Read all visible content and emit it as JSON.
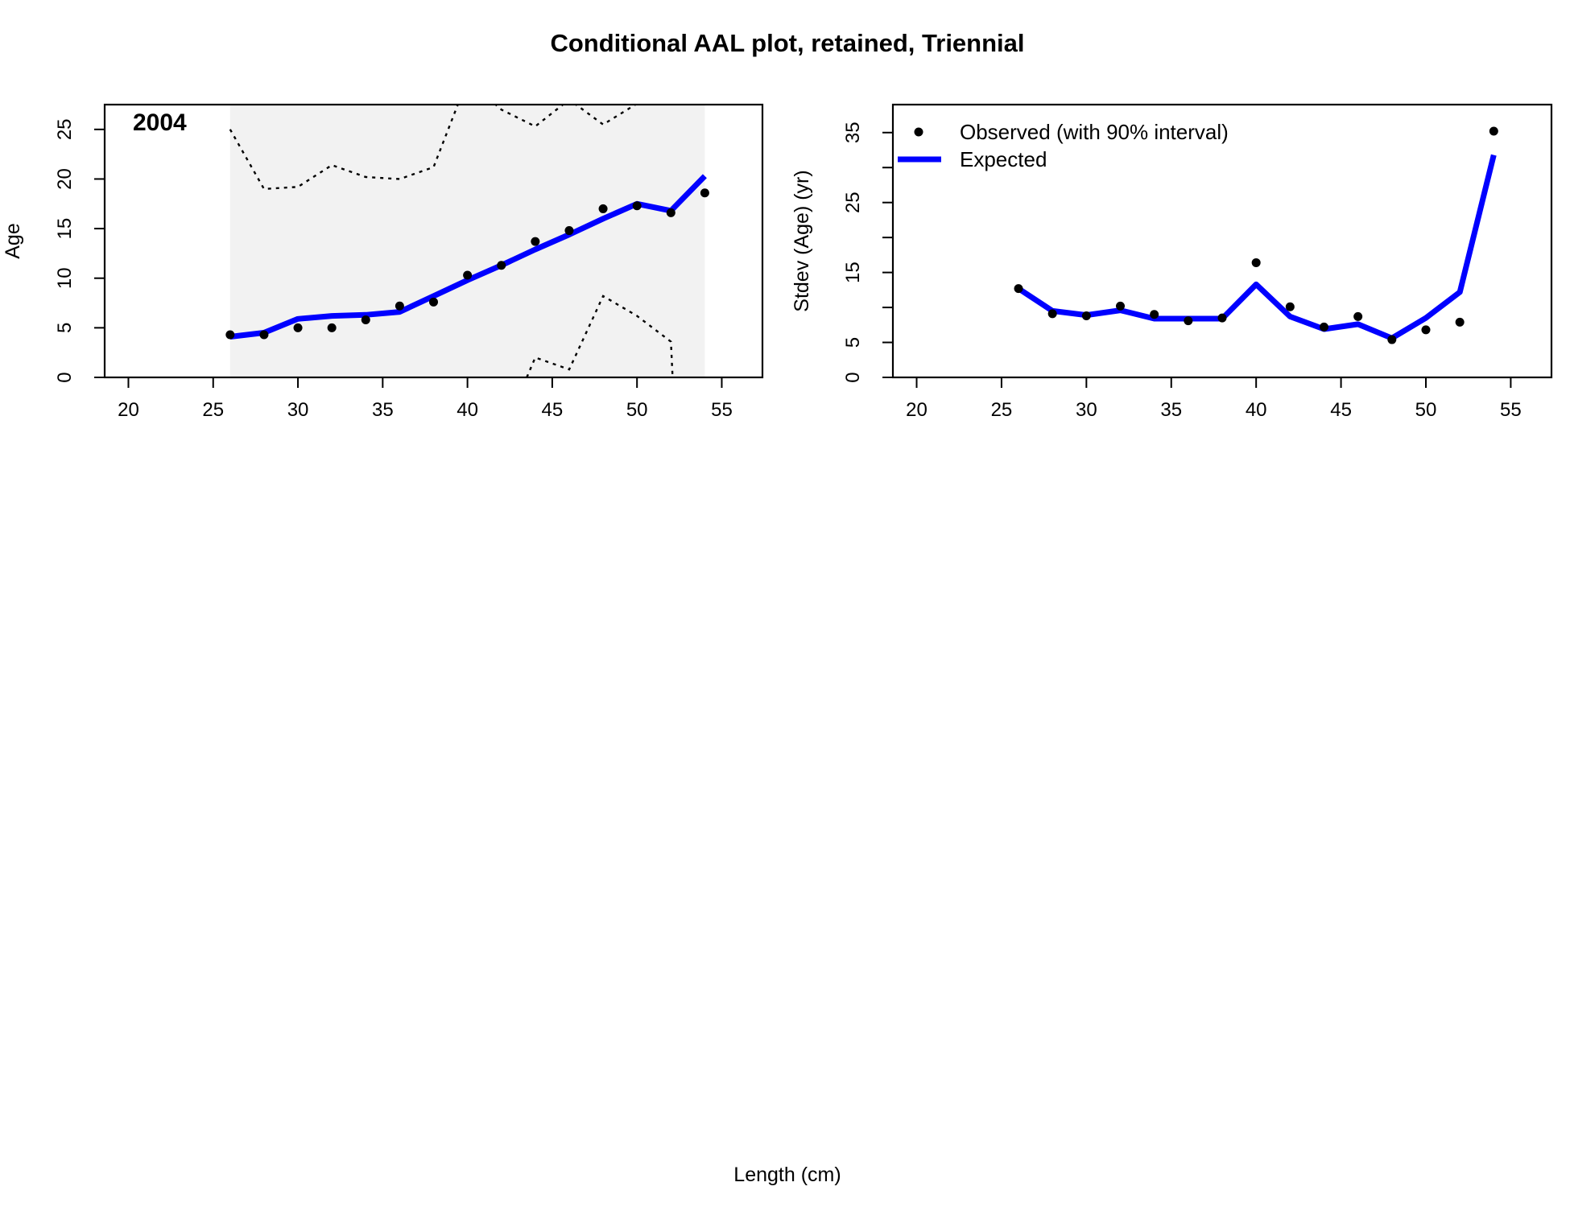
{
  "title": "Conditional AAL plot, retained, Triennial",
  "xlabel": "Length (cm)",
  "chart_data": [
    {
      "type": "line",
      "panel_label": "2004",
      "xlabel": "",
      "ylabel": "Age",
      "xlim": [
        18.6,
        57.4
      ],
      "ylim": [
        0,
        27.5
      ],
      "x_ticks": [
        20,
        25,
        30,
        35,
        40,
        45,
        50,
        55
      ],
      "y_ticks": [
        0,
        5,
        10,
        15,
        20,
        25
      ],
      "shaded_range_x": [
        26,
        54
      ],
      "shaded_color": "#f2f2f2",
      "series": [
        {
          "name": "",
          "kind": "points",
          "color": "#000000",
          "x": [
            26,
            28,
            30,
            32,
            34,
            36,
            38,
            40,
            42,
            44,
            46,
            48,
            50,
            52,
            54
          ],
          "values": [
            4.3,
            4.3,
            5.0,
            5.0,
            5.8,
            7.2,
            7.6,
            10.3,
            11.3,
            13.7,
            14.8,
            17.0,
            17.3,
            16.6,
            18.6
          ]
        },
        {
          "name": "",
          "kind": "line",
          "color": "#0000ff",
          "x": [
            26,
            28,
            30,
            32,
            34,
            36,
            38,
            40,
            42,
            44,
            46,
            48,
            50,
            52,
            54
          ],
          "values": [
            4.1,
            4.5,
            5.9,
            6.2,
            6.3,
            6.6,
            8.2,
            9.8,
            11.3,
            12.9,
            14.4,
            16.0,
            17.5,
            16.8,
            20.3
          ]
        },
        {
          "name": "",
          "kind": "dotted",
          "color": "#000000",
          "x": [
            26,
            28,
            30,
            32,
            34,
            36,
            38,
            40,
            42,
            44,
            46,
            48,
            50
          ],
          "values": [
            25.0,
            19.0,
            19.2,
            21.4,
            20.2,
            20.0,
            21.2,
            30.0,
            27.0,
            25.3,
            28.0,
            25.5,
            27.6
          ]
        },
        {
          "name": "",
          "kind": "dotted",
          "color": "#000000",
          "x": [
            43.5,
            44,
            46,
            48,
            50,
            52,
            52.1
          ],
          "values": [
            0,
            2.0,
            0.8,
            8.2,
            6.2,
            3.6,
            0
          ]
        }
      ]
    },
    {
      "type": "line",
      "xlabel": "",
      "ylabel": "Stdev (Age) (yr)",
      "xlim": [
        18.6,
        57.4
      ],
      "ylim": [
        0,
        39
      ],
      "x_ticks": [
        20,
        25,
        30,
        35,
        40,
        45,
        50,
        55
      ],
      "y_ticks": [
        0,
        5,
        10,
        15,
        20,
        25,
        30,
        35
      ],
      "y_tick_labels": [
        "0",
        "5",
        "",
        "15",
        "",
        "25",
        "",
        "35"
      ],
      "legend": {
        "placement": "top-left",
        "entries": [
          {
            "label": "Observed (with 90% interval)",
            "marker": "point",
            "color": "#000000"
          },
          {
            "label": "Expected",
            "marker": "line",
            "color": "#0000ff"
          }
        ]
      },
      "series": [
        {
          "name": "Observed (with 90% interval)",
          "kind": "points",
          "color": "#000000",
          "x": [
            26,
            28,
            30,
            32,
            34,
            36,
            38,
            40,
            42,
            44,
            46,
            48,
            50,
            52,
            54
          ],
          "values": [
            12.7,
            9.1,
            8.8,
            10.2,
            9.0,
            8.1,
            8.5,
            16.4,
            10.1,
            7.2,
            8.7,
            5.4,
            6.8,
            7.9,
            35.2
          ]
        },
        {
          "name": "Expected",
          "kind": "line",
          "color": "#0000ff",
          "x": [
            26,
            28,
            30,
            32,
            34,
            36,
            38,
            40,
            42,
            44,
            46,
            48,
            50,
            52,
            54
          ],
          "values": [
            12.7,
            9.5,
            8.9,
            9.6,
            8.4,
            8.4,
            8.4,
            13.3,
            8.7,
            6.9,
            7.6,
            5.6,
            8.5,
            12.2,
            31.8
          ]
        }
      ]
    }
  ]
}
